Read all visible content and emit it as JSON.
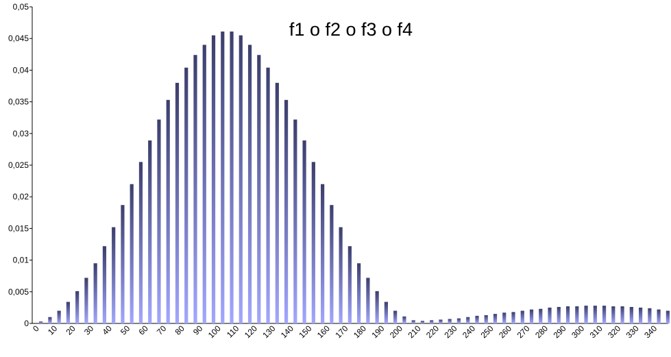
{
  "chart_data": {
    "type": "bar",
    "title": "f1 o f2 o f3 o f4",
    "categories": [
      "0",
      null,
      "10",
      null,
      "20",
      null,
      "30",
      null,
      "40",
      null,
      "50",
      null,
      "60",
      null,
      "70",
      null,
      "80",
      null,
      "90",
      null,
      "100",
      null,
      "110",
      null,
      "120",
      null,
      "130",
      null,
      "140",
      null,
      "150",
      null,
      "160",
      null,
      "170",
      null,
      "180",
      null,
      "190",
      null,
      "200",
      null,
      "210",
      null,
      "220",
      null,
      "230",
      null,
      "240",
      null,
      "250",
      null,
      "260",
      null,
      "270",
      null,
      "280",
      null,
      "290",
      null,
      "300",
      null,
      "310",
      null,
      "320",
      null,
      "330",
      null,
      "340",
      null
    ],
    "values": [
      0.0003,
      0.001,
      0.002,
      0.0034,
      0.0051,
      0.0072,
      0.0095,
      0.0122,
      0.0152,
      0.0187,
      0.022,
      0.0255,
      0.0289,
      0.0322,
      0.0353,
      0.038,
      0.0404,
      0.0424,
      0.044,
      0.0455,
      0.0461,
      0.0461,
      0.0455,
      0.044,
      0.0424,
      0.0404,
      0.038,
      0.0353,
      0.0322,
      0.0289,
      0.0255,
      0.022,
      0.0187,
      0.0152,
      0.0122,
      0.0095,
      0.0072,
      0.0051,
      0.0034,
      0.002,
      0.0011,
      0.0005,
      0.0004,
      0.0005,
      0.0006,
      0.0007,
      0.0008,
      0.001,
      0.0012,
      0.0013,
      0.0015,
      0.0017,
      0.0018,
      0.002,
      0.0022,
      0.0023,
      0.0025,
      0.0026,
      0.0027,
      0.0027,
      0.0028,
      0.0028,
      0.0028,
      0.0027,
      0.0027,
      0.0026,
      0.0025,
      0.0024,
      0.0022,
      0.002
    ],
    "gradient": [
      "#3c3e6c",
      "#a2a7ff"
    ],
    "ylim": [
      0,
      0.05
    ],
    "yticks": [
      0,
      {
        "value": 0.005,
        "label": "0,005"
      },
      {
        "value": 0.01,
        "label": "0,01"
      },
      {
        "value": 0.015,
        "label": "0,015"
      },
      {
        "value": 0.02,
        "label": "0,02"
      },
      {
        "value": 0.025,
        "label": "0,025"
      },
      {
        "value": 0.03,
        "label": "0,03"
      },
      {
        "value": 0.035,
        "label": "0,035"
      },
      {
        "value": 0.04,
        "label": "0,04"
      },
      {
        "value": 0.045,
        "label": "0,045"
      },
      {
        "value": 0.05,
        "label": "0,05"
      }
    ],
    "grid": false
  }
}
